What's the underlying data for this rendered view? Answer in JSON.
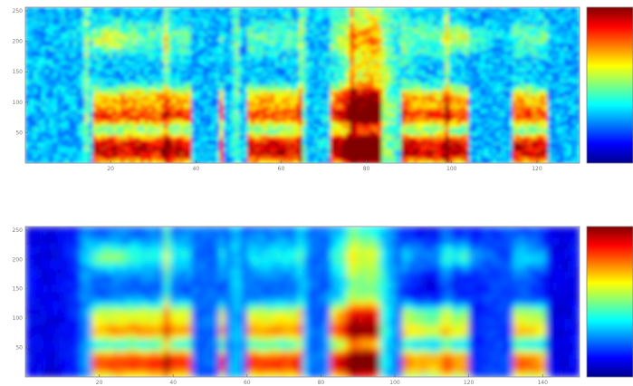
{
  "chart_data": [
    {
      "type": "heatmap",
      "title": "",
      "xlabel": "",
      "ylabel": "",
      "x_ticks": [
        "20",
        "40",
        "60",
        "80",
        "100",
        "120"
      ],
      "y_ticks": [
        "50",
        "100",
        "150",
        "200",
        "250"
      ],
      "ylim": [
        0,
        256
      ],
      "colormap": "jet",
      "colorbar_ticks": [
        "",
        "",
        "",
        "",
        ""
      ],
      "grid": false,
      "legend": "none",
      "bright_bands": [
        "~20-25",
        "~110-130"
      ],
      "energy_regions_x": [
        [
          12,
          30
        ],
        [
          40,
          50
        ],
        [
          55,
          65
        ],
        [
          68,
          80
        ],
        [
          88,
          95
        ],
        [
          108,
          123
        ]
      ]
    },
    {
      "type": "heatmap",
      "title": "",
      "xlabel": "",
      "ylabel": "",
      "x_ticks": [
        "20",
        "40",
        "60",
        "80",
        "100",
        "120",
        "140"
      ],
      "y_ticks": [
        "50",
        "100",
        "150",
        "200",
        "250"
      ],
      "ylim": [
        0,
        256
      ],
      "colormap": "jet",
      "colorbar_ticks": [
        "",
        "",
        "",
        "",
        ""
      ],
      "grid": false,
      "legend": "none",
      "smoothed": true,
      "energy_regions_x": [
        [
          12,
          30
        ],
        [
          40,
          50
        ],
        [
          55,
          65
        ],
        [
          68,
          80
        ],
        [
          88,
          95
        ],
        [
          108,
          123
        ]
      ]
    }
  ],
  "colors": {
    "jet_low": "#00008f",
    "jet_mid": "#7fff7f",
    "jet_high": "#800000"
  }
}
